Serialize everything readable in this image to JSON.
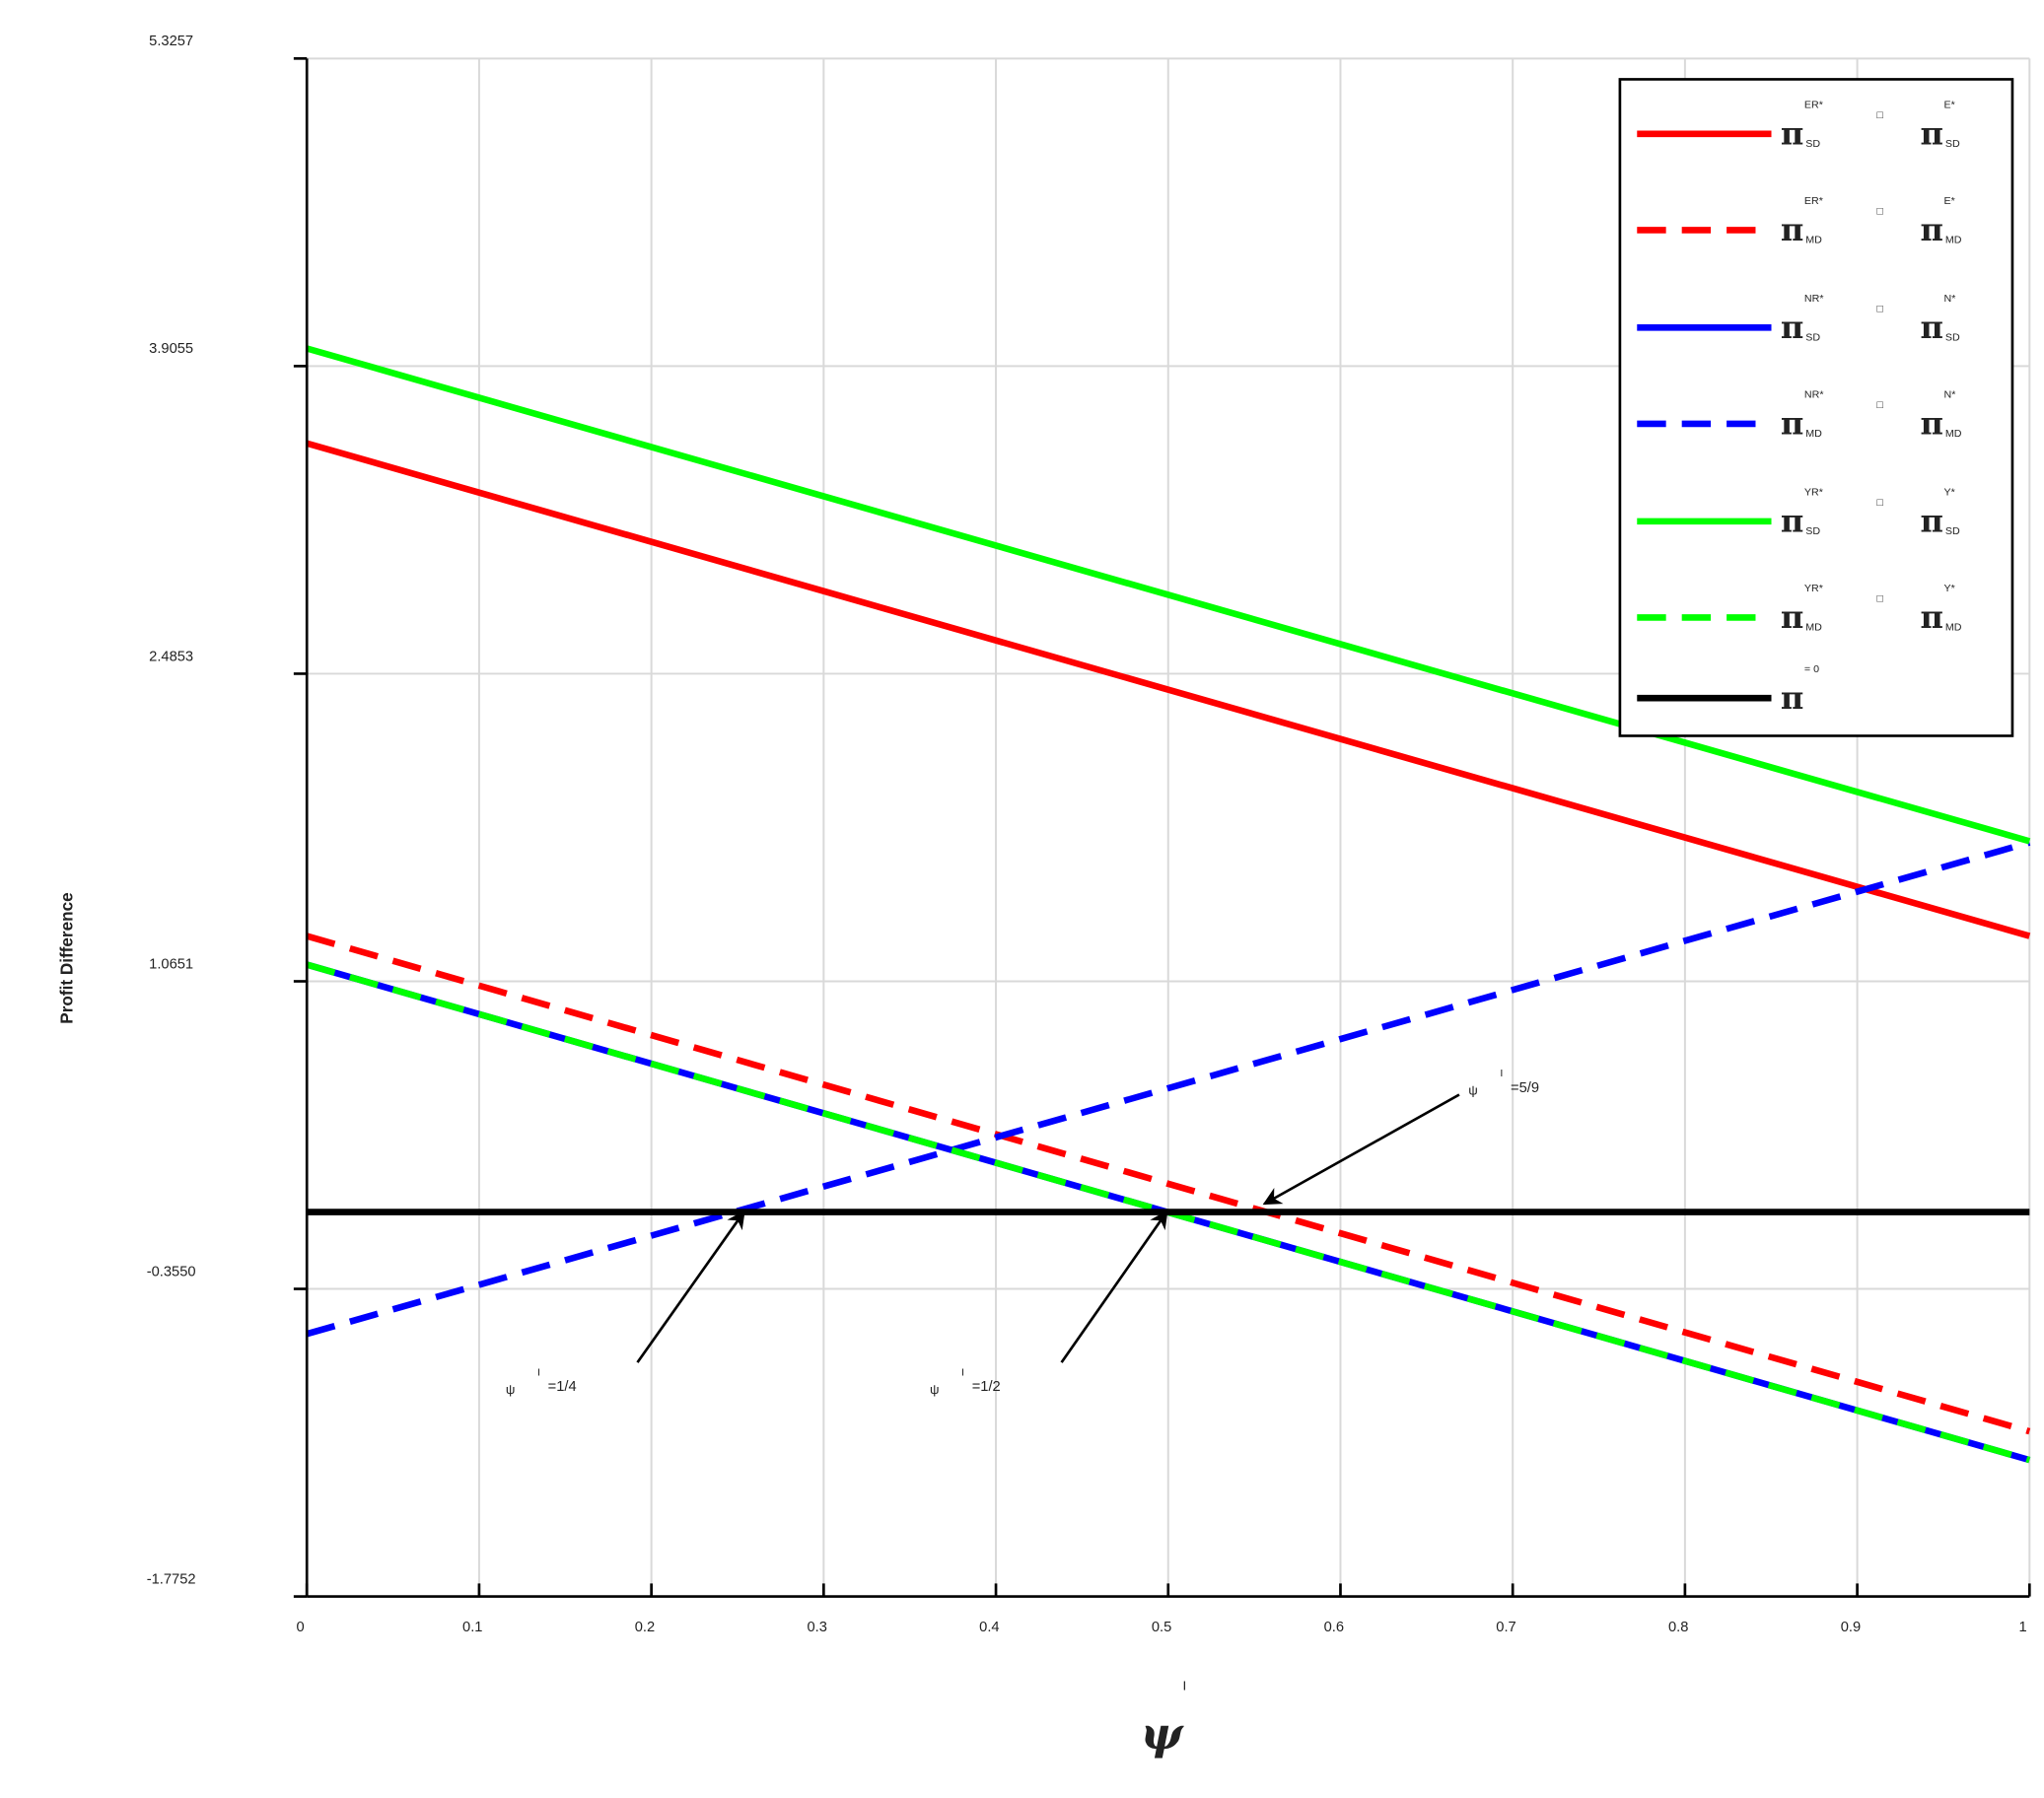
{
  "chart_data": {
    "type": "line",
    "y_label": "Profit Difference",
    "x_label": {
      "symbol": "ψ",
      "sup": "I"
    },
    "x": [
      0,
      1
    ],
    "xlim": [
      0,
      1
    ],
    "xticks": [
      0,
      0.1,
      0.2,
      0.3,
      0.4,
      0.5,
      0.6,
      0.7,
      0.8,
      0.9,
      1
    ],
    "ylim": [
      -1.7752,
      5.3257
    ],
    "yticks": [
      -1.7752,
      {
        "value": -0.355,
        "label": "-0.3550"
      },
      1.0651,
      2.4853,
      3.9055,
      5.3257
    ],
    "grid": true,
    "legend": "upper right",
    "series": [
      {
        "label": {
          "symbol": "π",
          "sup": "ER*",
          "sub": "SD",
          "operator": "□",
          "symbol2": "π",
          "sup2": "E*",
          "sub2": "SD"
        },
        "color": "#ff0000",
        "dashed": false,
        "values": [
          3.549,
          1.274
        ]
      },
      {
        "label": {
          "symbol": "π",
          "sup": "ER*",
          "sub": "MD",
          "operator": "□",
          "symbol2": "π",
          "sup2": "E*",
          "sub2": "MD"
        },
        "color": "#ff0000",
        "dashed": true,
        "values": [
          1.274,
          -1.013
        ]
      },
      {
        "label": {
          "symbol": "π",
          "sup": "NR*",
          "sub": "SD",
          "operator": "□",
          "symbol2": "π",
          "sup2": "N*",
          "sub2": "SD"
        },
        "color": "#0000ff",
        "dashed": false,
        "values": [
          1.142,
          -1.145
        ]
      },
      {
        "label": {
          "symbol": "π",
          "sup": "NR*",
          "sub": "MD",
          "operator": "□",
          "symbol2": "π",
          "sup2": "N*",
          "sub2": "MD"
        },
        "color": "#0000ff",
        "dashed": true,
        "values": [
          -0.563,
          1.706
        ]
      },
      {
        "label": {
          "symbol": "π",
          "sup": "YR*",
          "sub": "SD",
          "operator": "□",
          "symbol2": "π",
          "sup2": "Y*",
          "sub2": "SD"
        },
        "color": "#00ff00",
        "dashed": false,
        "values": [
          3.987,
          1.712
        ]
      },
      {
        "label": {
          "symbol": "π",
          "sup": "YR*",
          "sub": "MD",
          "operator": "□",
          "symbol2": "π",
          "sup2": "Y*",
          "sub2": "MD"
        },
        "color": "#00ff00",
        "dashed": true,
        "values": [
          1.142,
          -1.145
        ]
      },
      {
        "label": {
          "symbol": "π",
          "sup": "= 0"
        },
        "color": "#000000",
        "dashed": false,
        "values": [
          0,
          0
        ]
      }
    ],
    "annotations": [
      {
        "symbol": "ψ",
        "sup": "I",
        "text": "=1/4"
      },
      {
        "symbol": "ψ",
        "sup": "I",
        "text": "=1/2"
      },
      {
        "symbol": "ψ",
        "sup": "I",
        "text": "=5/9"
      }
    ]
  }
}
